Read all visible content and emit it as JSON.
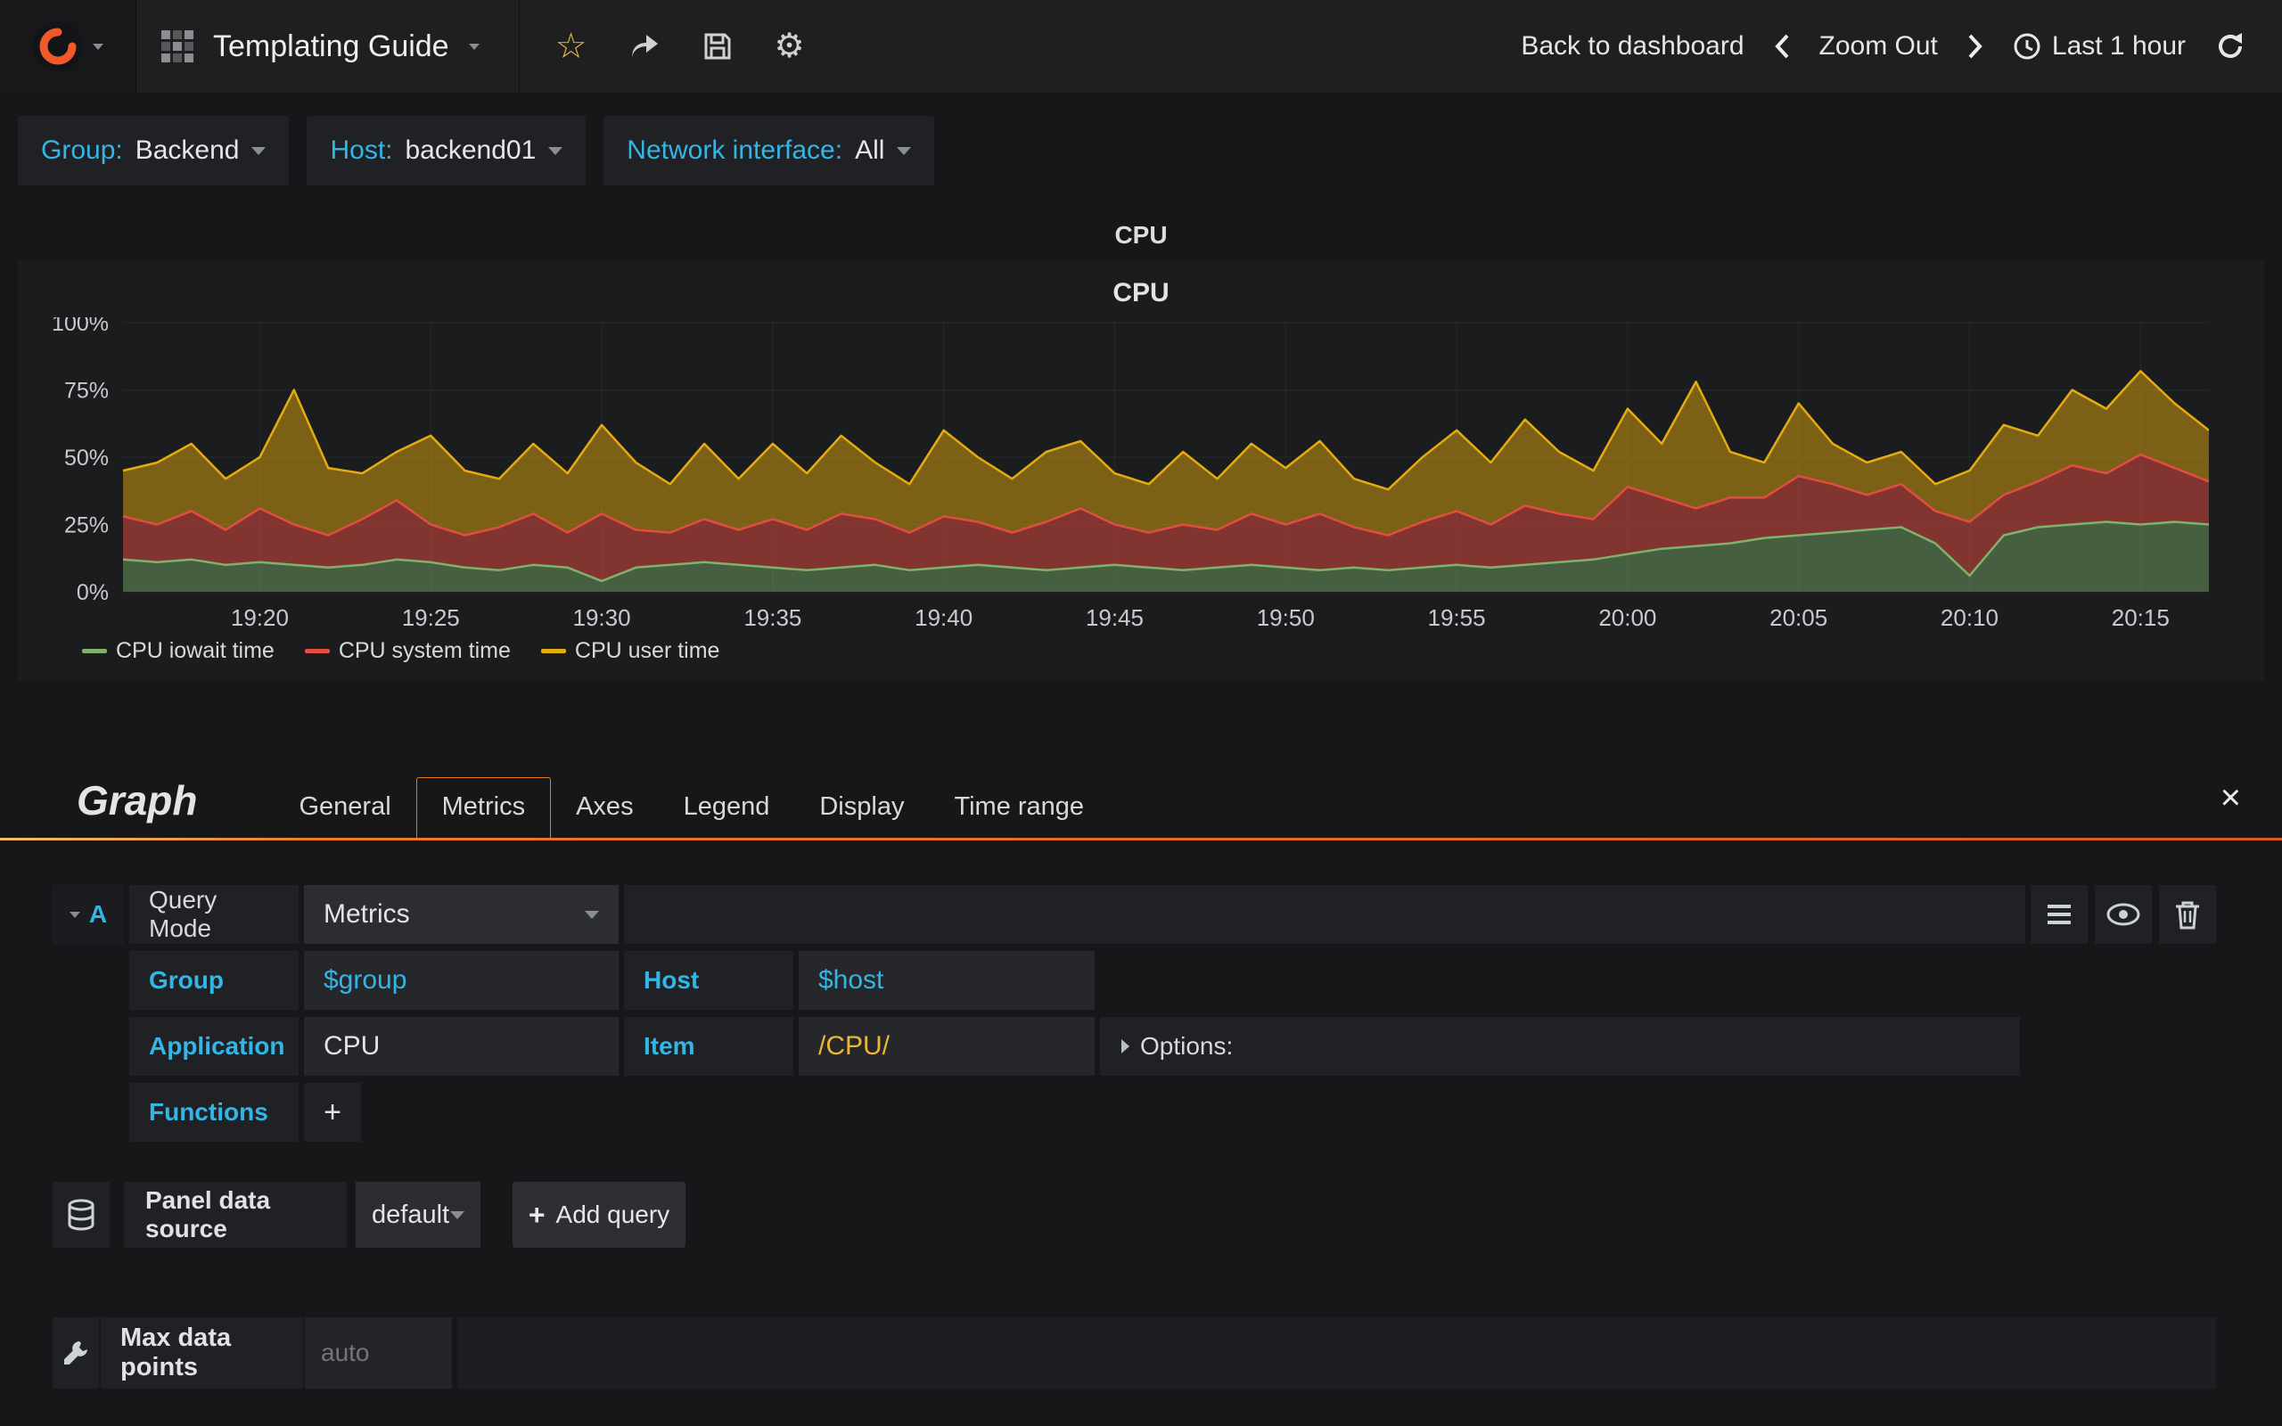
{
  "colors": {
    "accent_orange": "#ef7b1e",
    "cyan": "#33b5e5",
    "gold": "#eab839",
    "logo_orange": "#f05a28"
  },
  "navbar": {
    "title": "Templating Guide",
    "back": "Back to dashboard",
    "zoom_out": "Zoom Out",
    "time_range": "Last 1 hour"
  },
  "variables": [
    {
      "label": "Group:",
      "value": "Backend"
    },
    {
      "label": "Host:",
      "value": "backend01"
    },
    {
      "label": "Network interface:",
      "value": "All"
    }
  ],
  "panel": {
    "title": "CPU"
  },
  "chart_data": {
    "type": "area",
    "stacked": true,
    "title": "CPU",
    "xlabel": "",
    "ylabel": "",
    "ylim": [
      0,
      100
    ],
    "yticks": [
      0,
      25,
      50,
      75,
      100
    ],
    "ytick_labels": [
      "0%",
      "25%",
      "50%",
      "75%",
      "100%"
    ],
    "xtick_labels": [
      "19:20",
      "19:25",
      "19:30",
      "19:35",
      "19:40",
      "19:45",
      "19:50",
      "19:55",
      "20:00",
      "20:05",
      "20:10",
      "20:15"
    ],
    "xtick_offsets": [
      4,
      9,
      14,
      19,
      24,
      29,
      34,
      39,
      44,
      49,
      54,
      59
    ],
    "n_points": 62,
    "grid": true,
    "legend_position": "bottom-left",
    "series": [
      {
        "name": "CPU iowait time",
        "color": "#7eb26d",
        "values": [
          12,
          11,
          12,
          10,
          11,
          10,
          9,
          10,
          12,
          11,
          9,
          8,
          10,
          9,
          4,
          9,
          10,
          11,
          10,
          9,
          8,
          9,
          10,
          8,
          9,
          10,
          9,
          8,
          9,
          10,
          9,
          8,
          9,
          10,
          9,
          8,
          9,
          8,
          9,
          10,
          9,
          10,
          11,
          12,
          14,
          16,
          17,
          18,
          20,
          21,
          22,
          23,
          24,
          18,
          6,
          21,
          24,
          25,
          26,
          25,
          26,
          25
        ]
      },
      {
        "name": "CPU system time",
        "color": "#e24d42",
        "values": [
          16,
          14,
          18,
          13,
          20,
          15,
          12,
          17,
          22,
          14,
          12,
          16,
          19,
          13,
          25,
          14,
          12,
          16,
          13,
          18,
          15,
          20,
          17,
          14,
          19,
          16,
          13,
          18,
          22,
          15,
          13,
          17,
          14,
          19,
          16,
          21,
          15,
          13,
          17,
          20,
          16,
          22,
          18,
          15,
          25,
          19,
          14,
          17,
          15,
          22,
          18,
          13,
          16,
          12,
          20,
          15,
          17,
          22,
          18,
          26,
          20,
          16
        ]
      },
      {
        "name": "CPU user time",
        "color": "#e5ac0e",
        "values": [
          17,
          23,
          25,
          19,
          19,
          50,
          25,
          17,
          18,
          33,
          24,
          18,
          26,
          22,
          33,
          25,
          18,
          28,
          19,
          28,
          21,
          29,
          21,
          18,
          32,
          24,
          20,
          26,
          25,
          19,
          18,
          27,
          19,
          26,
          21,
          27,
          18,
          17,
          24,
          30,
          23,
          32,
          23,
          18,
          29,
          20,
          47,
          17,
          13,
          27,
          15,
          12,
          12,
          10,
          19,
          26,
          17,
          28,
          24,
          31,
          24,
          19
        ]
      }
    ]
  },
  "editor": {
    "title": "Graph",
    "tabs": [
      "General",
      "Metrics",
      "Axes",
      "Legend",
      "Display",
      "Time range"
    ],
    "active_tab": "Metrics",
    "close_icon": "×",
    "query": {
      "ref": "A",
      "mode_label": "Query Mode",
      "mode_value": "Metrics",
      "group_label": "Group",
      "group_value": "$group",
      "host_label": "Host",
      "host_value": "$host",
      "application_label": "Application",
      "application_value": "CPU",
      "item_label": "Item",
      "item_value": "/CPU/",
      "options_label": "Options:",
      "functions_label": "Functions",
      "add_function": "+"
    },
    "datasource": {
      "label": "Panel data source",
      "value": "default",
      "add_query": "Add query",
      "add_plus": "+"
    },
    "max_data_points": {
      "label": "Max data points",
      "placeholder": "auto"
    }
  }
}
